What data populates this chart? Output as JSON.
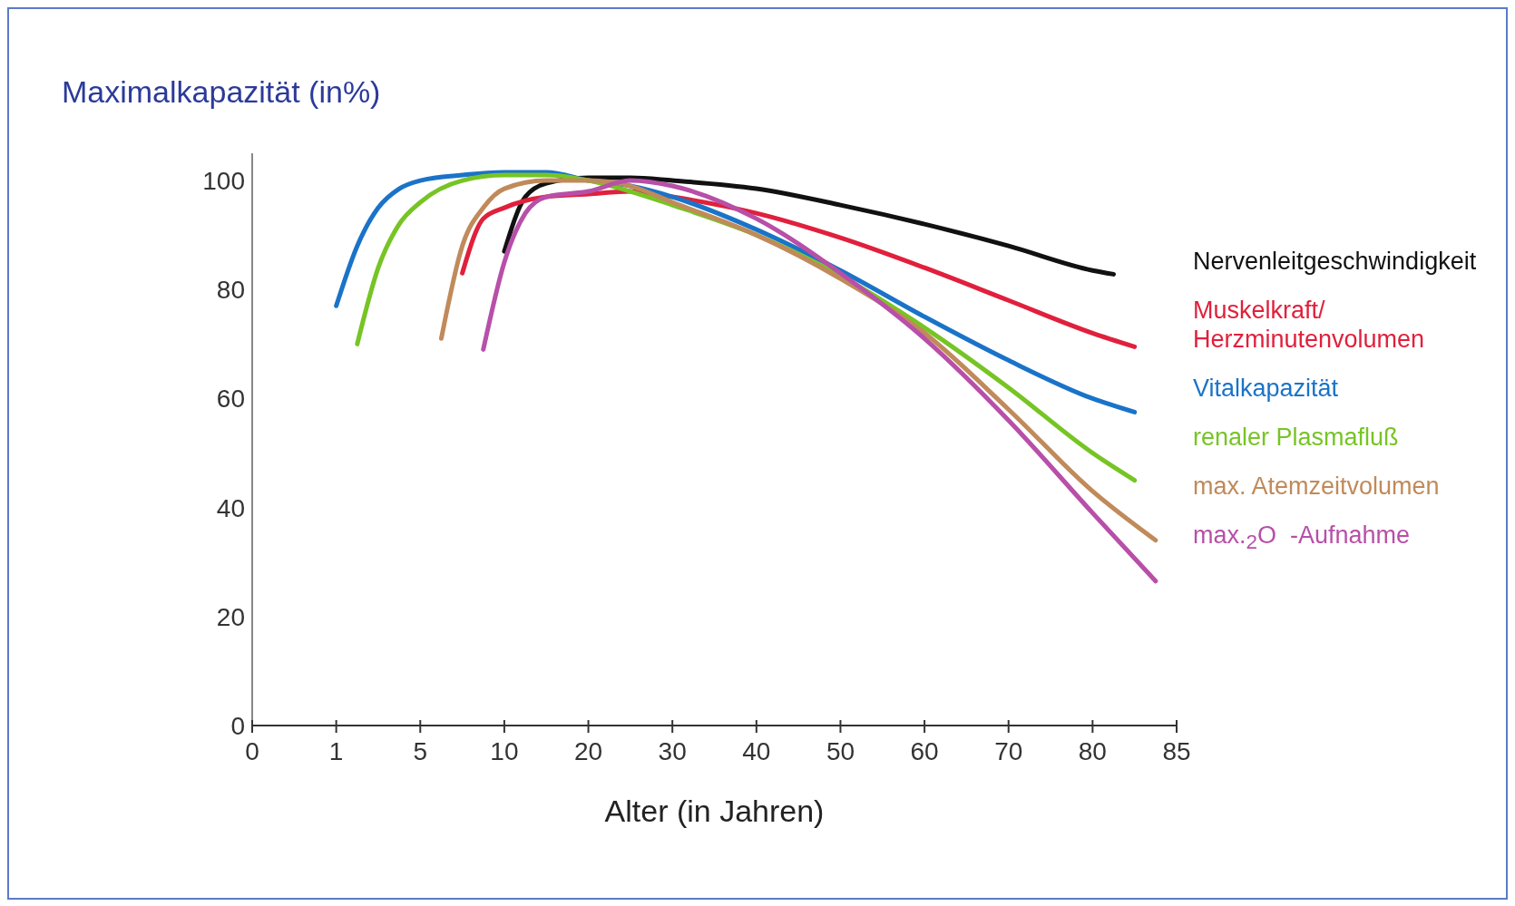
{
  "chart_data": {
    "type": "line",
    "ylabel": "Maximalkapazität (in%)",
    "xlabel": "Alter (in Jahren)",
    "categories": [
      "0",
      null,
      null,
      null,
      "1",
      null,
      null,
      null,
      "5",
      null,
      null,
      null,
      "10",
      null,
      null,
      null,
      "20",
      null,
      null,
      null,
      "30",
      null,
      null,
      null,
      "40",
      null,
      null,
      null,
      "50",
      null,
      null,
      null,
      "60",
      null,
      null,
      null,
      "70",
      null,
      null,
      null,
      "80",
      null,
      null,
      null,
      "85"
    ],
    "ylim": [
      0,
      105
    ],
    "yticks": [
      0,
      20,
      40,
      60,
      80,
      100
    ],
    "grid": false,
    "legend": "right",
    "marker": "none",
    "line_style": "solid",
    "series": [
      {
        "name": "Nervenleitgeschwindigkeit",
        "color": "#111111",
        "values": [
          null,
          null,
          null,
          null,
          null,
          null,
          null,
          null,
          null,
          null,
          null,
          null,
          87,
          97,
          99.5,
          null,
          100.5,
          null,
          100.5,
          null,
          100,
          null,
          null,
          null,
          98.5,
          null,
          null,
          null,
          95.5,
          null,
          null,
          null,
          92,
          null,
          null,
          null,
          88,
          null,
          null,
          null,
          83.5,
          82.8,
          null,
          null,
          null
        ]
      },
      {
        "name": "Muskelkraft/\nHerzminutenvolumen",
        "color": "#e0203c",
        "values": [
          null,
          null,
          null,
          null,
          null,
          null,
          null,
          null,
          null,
          null,
          83,
          93,
          95,
          null,
          97,
          null,
          97.5,
          null,
          98,
          null,
          97,
          null,
          null,
          null,
          94,
          null,
          null,
          null,
          89.5,
          null,
          null,
          null,
          84,
          null,
          null,
          null,
          78,
          null,
          null,
          null,
          72,
          null,
          69.5,
          null,
          null
        ]
      },
      {
        "name": "Vitalkapazität",
        "color": "#1a73c8",
        "values": [
          null,
          null,
          null,
          null,
          77,
          88,
          95,
          98.5,
          100,
          null,
          101,
          null,
          101.5,
          null,
          101.5,
          null,
          100,
          null,
          99,
          null,
          97,
          null,
          null,
          null,
          91,
          null,
          null,
          null,
          83.5,
          null,
          null,
          null,
          75,
          null,
          null,
          null,
          67,
          null,
          null,
          null,
          60,
          null,
          57.5,
          null,
          null
        ]
      },
      {
        "name": "renaler Plasmafluß",
        "color": "#77c425",
        "values": [
          null,
          null,
          null,
          null,
          null,
          70,
          84,
          92,
          96,
          null,
          100,
          null,
          101,
          null,
          101,
          null,
          100,
          null,
          98,
          null,
          95.5,
          null,
          null,
          null,
          90,
          null,
          null,
          null,
          82.5,
          null,
          null,
          null,
          73,
          null,
          null,
          null,
          62,
          null,
          null,
          null,
          50,
          null,
          45,
          null,
          null
        ]
      },
      {
        "name": "max. Atemzeitvolumen",
        "color": "#c08a5a",
        "values": [
          null,
          null,
          null,
          null,
          null,
          null,
          null,
          null,
          null,
          71,
          88,
          95,
          98.5,
          null,
          100,
          null,
          100,
          null,
          99,
          null,
          96,
          null,
          null,
          null,
          90,
          null,
          null,
          null,
          82,
          null,
          null,
          null,
          72,
          null,
          null,
          null,
          58,
          null,
          null,
          null,
          43,
          null,
          null,
          34,
          null
        ]
      },
      {
        "name": "max.$_{2}$O  -Aufnahme",
        "color": "#b84fa8",
        "values": [
          null,
          null,
          null,
          null,
          null,
          null,
          null,
          null,
          null,
          null,
          null,
          69,
          85,
          94,
          97,
          null,
          98,
          null,
          100,
          null,
          99,
          null,
          null,
          null,
          93,
          null,
          null,
          null,
          83,
          null,
          null,
          null,
          71,
          null,
          null,
          null,
          56,
          null,
          null,
          null,
          39,
          null,
          null,
          26.5,
          null
        ]
      }
    ]
  }
}
